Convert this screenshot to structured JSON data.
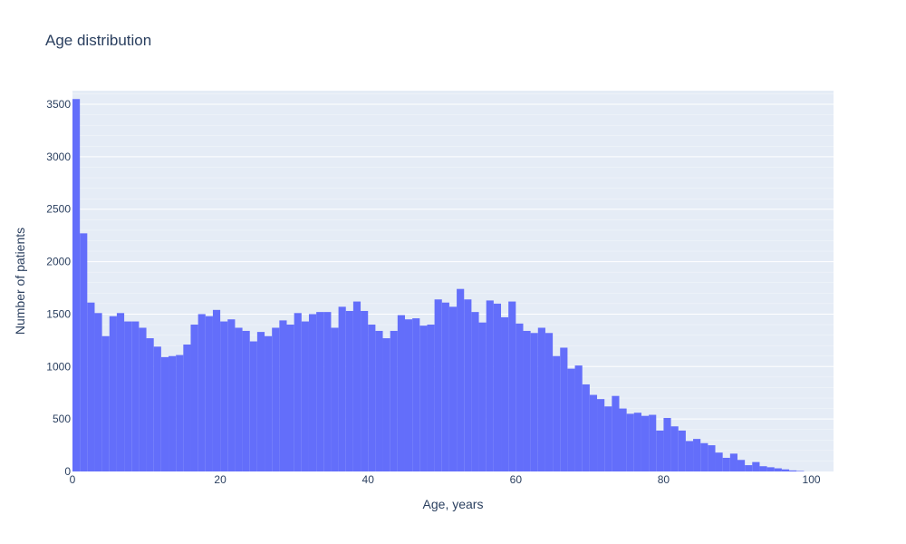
{
  "chart_data": {
    "type": "bar",
    "title": "Age distribution",
    "xlabel": "Age, years",
    "ylabel": "Number of patients",
    "xlim": [
      0,
      103
    ],
    "ylim": [
      0,
      3630
    ],
    "x_ticks": [
      0,
      20,
      40,
      60,
      80,
      100
    ],
    "y_ticks": [
      0,
      500,
      1000,
      1500,
      2000,
      2500,
      3000,
      3500
    ],
    "grid": true,
    "bin_width": 1,
    "bar_color": "#636efa",
    "plot_bg": "#e5ecf6",
    "grid_color": "#ffffff",
    "x": [
      0,
      1,
      2,
      3,
      4,
      5,
      6,
      7,
      8,
      9,
      10,
      11,
      12,
      13,
      14,
      15,
      16,
      17,
      18,
      19,
      20,
      21,
      22,
      23,
      24,
      25,
      26,
      27,
      28,
      29,
      30,
      31,
      32,
      33,
      34,
      35,
      36,
      37,
      38,
      39,
      40,
      41,
      42,
      43,
      44,
      45,
      46,
      47,
      48,
      49,
      50,
      51,
      52,
      53,
      54,
      55,
      56,
      57,
      58,
      59,
      60,
      61,
      62,
      63,
      64,
      65,
      66,
      67,
      68,
      69,
      70,
      71,
      72,
      73,
      74,
      75,
      76,
      77,
      78,
      79,
      80,
      81,
      82,
      83,
      84,
      85,
      86,
      87,
      88,
      89,
      90,
      91,
      92,
      93,
      94,
      95,
      96,
      97,
      98,
      99,
      100,
      101,
      102
    ],
    "values": [
      3550,
      2270,
      1610,
      1510,
      1290,
      1480,
      1510,
      1430,
      1430,
      1370,
      1270,
      1190,
      1090,
      1100,
      1110,
      1210,
      1400,
      1500,
      1480,
      1540,
      1430,
      1450,
      1370,
      1340,
      1240,
      1330,
      1290,
      1370,
      1440,
      1400,
      1510,
      1430,
      1500,
      1520,
      1520,
      1370,
      1570,
      1530,
      1620,
      1530,
      1400,
      1340,
      1270,
      1340,
      1490,
      1450,
      1460,
      1390,
      1400,
      1640,
      1610,
      1570,
      1740,
      1640,
      1520,
      1420,
      1630,
      1600,
      1470,
      1620,
      1410,
      1340,
      1320,
      1370,
      1320,
      1100,
      1180,
      980,
      1010,
      830,
      730,
      690,
      620,
      720,
      600,
      550,
      560,
      530,
      540,
      390,
      510,
      430,
      390,
      290,
      310,
      270,
      250,
      180,
      130,
      170,
      110,
      60,
      90,
      50,
      40,
      30,
      20,
      10,
      5,
      0,
      0,
      0,
      0
    ]
  }
}
